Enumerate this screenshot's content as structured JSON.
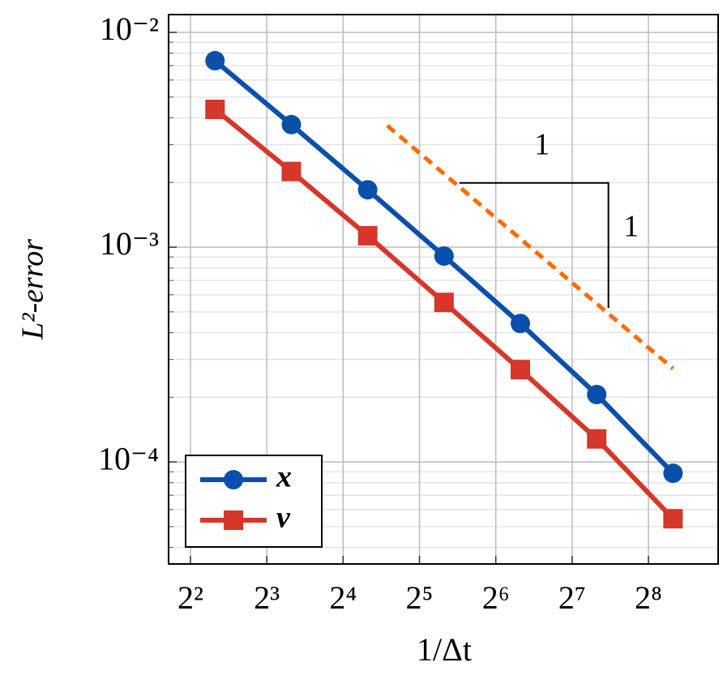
{
  "chart_data": {
    "type": "line",
    "x_label": "1/Δt",
    "y_label": "L²-error",
    "log_x": true,
    "log_y": true,
    "log_x_base": 2,
    "grid": true,
    "legend_position": "lower left",
    "xlim": [
      3.28,
      482
    ],
    "ylim": [
      3.35e-05,
      0.0121
    ],
    "xticks": [
      {
        "value": 4,
        "label": "2²"
      },
      {
        "value": 8,
        "label": "2³"
      },
      {
        "value": 16,
        "label": "2⁴"
      },
      {
        "value": 32,
        "label": "2⁵"
      },
      {
        "value": 64,
        "label": "2⁶"
      },
      {
        "value": 128,
        "label": "2⁷"
      },
      {
        "value": 256,
        "label": "2⁸"
      }
    ],
    "yticks": [
      {
        "value": 0.0001,
        "label": "10⁻⁴"
      },
      {
        "value": 0.001,
        "label": "10⁻³"
      },
      {
        "value": 0.01,
        "label": "10⁻²"
      }
    ],
    "yminorticks": [
      4e-05,
      5e-05,
      6e-05,
      7e-05,
      8e-05,
      9e-05,
      0.0002,
      0.0003,
      0.0004,
      0.0005,
      0.0006,
      0.0007,
      0.0008,
      0.0009,
      0.002,
      0.003,
      0.004,
      0.005,
      0.006,
      0.007,
      0.008,
      0.009
    ],
    "x": [
      5,
      10,
      20,
      40,
      80,
      160,
      320
    ],
    "series": [
      {
        "name": "x",
        "color": "#0b4fad",
        "marker": "circle",
        "values": [
          0.00738,
          0.00372,
          0.00185,
          0.000909,
          0.000441,
          0.000206,
          8.86e-05
        ]
      },
      {
        "name": "v",
        "color": "#d7362a",
        "marker": "square",
        "values": [
          0.00438,
          0.00225,
          0.00113,
          0.000553,
          0.000269,
          0.000128,
          5.44e-05
        ]
      }
    ],
    "reference_line": {
      "color": "#ff6a00",
      "x": [
        23.9,
        320
      ],
      "values": [
        0.00368,
        0.000272
      ]
    },
    "slope_triangle": {
      "x": [
        46,
        178
      ],
      "values": [
        0.00199,
        0.000521
      ],
      "run_label": "1",
      "rise_label": "1"
    }
  }
}
